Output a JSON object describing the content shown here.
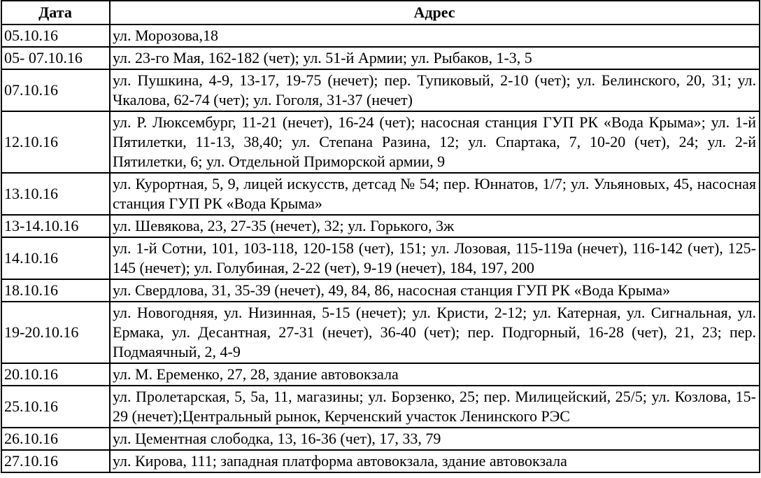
{
  "table": {
    "header": [
      "Дата",
      "Адрес"
    ],
    "rows": [
      [
        "05.10.16",
        "ул. Морозова,18"
      ],
      [
        "05- 07.10.16",
        "ул. 23-го Мая, 162-182 (чет); ул. 51-й Армии; ул. Рыбаков, 1-3, 5"
      ],
      [
        "07.10.16",
        "ул. Пушкина, 4-9, 13-17, 19-75 (нечет); пер. Тупиковый, 2-10 (чет); ул. Белинского, 20, 31; ул. Чкалова, 62-74 (чет); ул. Гоголя, 31-37 (нечет)"
      ],
      [
        "12.10.16",
        "ул. Р. Люксембург, 11-21 (нечет), 16-24 (чет); насосная станция ГУП РК «Вода Крыма»; ул. 1-й Пятилетки, 11-13, 38,40; ул. Степана Разина, 12; ул. Спартака, 7, 10-20 (чет), 24; ул. 2-й Пятилетки, 6; ул. Отдельной Приморской армии, 9"
      ],
      [
        "13.10.16",
        "ул. Курортная, 5, 9, лицей искусств, детсад № 54; пер. Юннатов, 1/7; ул. Ульяновых, 45,  насосная станция ГУП РК «Вода Крыма»"
      ],
      [
        "13-14.10.16",
        "ул. Шевякова, 23, 27-35 (нечет), 32; ул. Горького, 3ж"
      ],
      [
        "14.10.16",
        "ул. 1-й Сотни, 101, 103-118, 120-158 (чет), 151; ул. Лозовая, 115-119а (нечет), 116-142 (чет), 125-145 (нечет); ул. Голубиная, 2-22 (чет), 9-19 (нечет), 184, 197, 200"
      ],
      [
        "18.10.16",
        "ул. Свердлова, 31, 35-39 (нечет), 49, 84, 86, насосная станция ГУП РК «Вода Крыма»"
      ],
      [
        "19-20.10.16",
        "ул. Новогодняя, ул. Низинная, 5-15 (нечет); ул. Кристи, 2-12; ул. Катерная, ул. Сигнальная, ул. Ермака, ул. Десантная, 27-31 (нечет), 36-40 (чет); пер. Подгорный, 16-28 (чет), 21, 23; пер. Подмаячный, 2, 4-9"
      ],
      [
        "20.10.16",
        "ул. М. Еременко, 27, 28, здание автовокзала"
      ],
      [
        "25.10.16",
        "ул. Пролетарская, 5, 5а, 11, магазины; ул. Борзенко, 25; пер. Милицейский, 25/5; ул. Козлова, 15-29 (нечет);Центральный рынок, Керченский участок Ленинского РЭС"
      ],
      [
        "26.10.16",
        "ул. Цементная слободка, 13, 16-36 (чет), 17, 33, 79"
      ],
      [
        "27.10.16",
        "ул. Кирова, 111; западная платформа автовокзала, здание автовокзала"
      ]
    ]
  }
}
